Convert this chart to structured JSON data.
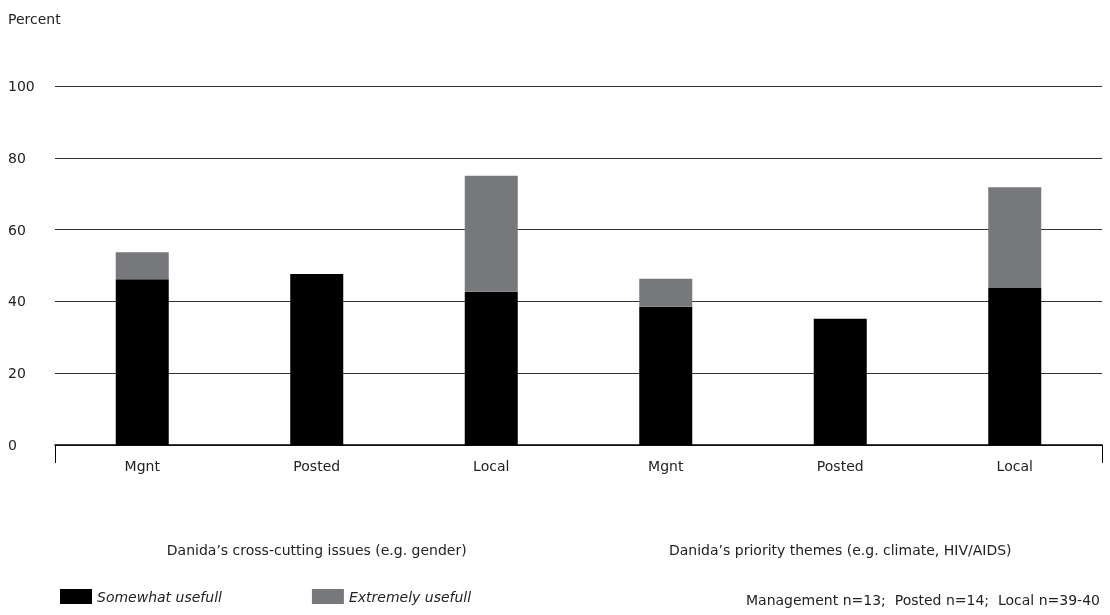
{
  "chart_data": {
    "type": "bar",
    "stacked": true,
    "ylabel": "Percent",
    "categories": [
      "Mgnt",
      "Posted",
      "Local",
      "Mgnt",
      "Posted",
      "Local"
    ],
    "series": [
      {
        "name": "Somewhat usefull",
        "color": "#000000",
        "values": [
          46.2,
          47.6,
          42.7,
          38.5,
          35.2,
          43.7
        ]
      },
      {
        "name": "Extremely usefull",
        "color": "#77787b",
        "values": [
          7.5,
          null,
          32.3,
          7.8,
          null,
          28.1
        ]
      }
    ],
    "ylim": [
      0,
      100
    ],
    "yticks": [
      0,
      20,
      40,
      60,
      80,
      100
    ],
    "grid": "y",
    "legend": "bottom left",
    "annotations": [
      "Danida’s cross-cutting issues (e.g. gender)",
      "Danida’s priority themes (e.g. climate, HIV/AIDS)",
      "Management n=13;  Posted n=14;  Local n=39-40"
    ]
  }
}
